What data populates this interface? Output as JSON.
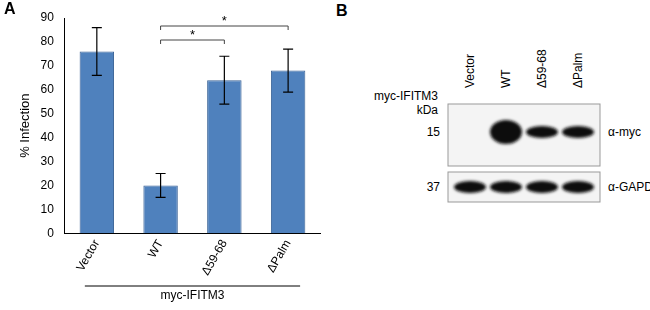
{
  "chart_data": {
    "type": "bar",
    "panel": "A",
    "categories": [
      "Vector",
      "WT",
      "Δ59-68",
      "ΔPalm"
    ],
    "values": [
      76,
      20,
      64,
      68
    ],
    "error": [
      10,
      5,
      10,
      9
    ],
    "color": "#4f81bd",
    "y_label": "% Infection",
    "x_group_label": "myc-IFITM3",
    "ylim": [
      0,
      90
    ],
    "yticks": [
      0,
      10,
      20,
      30,
      40,
      50,
      60,
      70,
      80,
      90
    ],
    "grid": false,
    "annotations": [
      {
        "from": "WT",
        "to": "Δ59-68",
        "text": "*"
      },
      {
        "from": "WT",
        "to": "ΔPalm",
        "text": "*"
      }
    ]
  },
  "blot": {
    "panel": "B",
    "construct_label": "myc-IFITM3",
    "mw_unit": "kDa",
    "lanes": [
      "Vector",
      "WT",
      "Δ59-68",
      "ΔPalm"
    ],
    "rows": [
      {
        "mw": 15,
        "antibody": "α-myc",
        "bands": [
          false,
          true,
          true,
          true
        ]
      },
      {
        "mw": 37,
        "antibody": "α-GAPDH",
        "bands": [
          true,
          true,
          true,
          true
        ]
      }
    ]
  }
}
